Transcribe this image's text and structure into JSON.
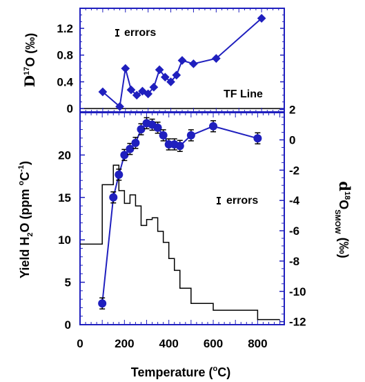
{
  "colors": {
    "series": "#1f1fbe",
    "frame": "#1f1fbe",
    "step": "#000000",
    "text": "#000000"
  },
  "chart_data": [
    {
      "id": "top",
      "type": "line",
      "ylabel_parts": [
        "D",
        "17",
        "O (‰)"
      ],
      "xlim": [
        0,
        900
      ],
      "ylim": [
        -0.05,
        1.5
      ],
      "yticks": [
        0,
        0.4,
        0.8,
        1.2
      ],
      "ytick_labels": [
        "0",
        "0.4",
        "0.8",
        "1.2"
      ],
      "legend_text": "errors",
      "reference_line": {
        "label": "TF Line",
        "y": 0
      },
      "series": [
        {
          "marker": "diamond",
          "x": [
            100,
            175,
            200,
            225,
            250,
            275,
            300,
            325,
            350,
            375,
            400,
            425,
            450,
            500,
            600,
            800
          ],
          "y": [
            0.25,
            0.03,
            0.6,
            0.28,
            0.2,
            0.26,
            0.22,
            0.32,
            0.58,
            0.47,
            0.4,
            0.5,
            0.72,
            0.67,
            0.75,
            1.35
          ]
        }
      ]
    },
    {
      "id": "bottom",
      "type": "line",
      "xlabel_parts": [
        "Temperature (",
        "o",
        "C)"
      ],
      "ylabel_parts": [
        "Yield H",
        "2",
        "O (ppm ",
        "o",
        "C",
        "-1",
        ")"
      ],
      "y2label_parts": [
        "d",
        "18",
        "O",
        "SMOW",
        " (‰)"
      ],
      "xlim": [
        0,
        920
      ],
      "ylim": [
        0,
        25
      ],
      "xticks": [
        0,
        200,
        400,
        600,
        800
      ],
      "xtick_labels": [
        "0",
        "200",
        "400",
        "600",
        "800"
      ],
      "yticks": [
        0,
        5,
        10,
        15,
        20
      ],
      "ytick_labels": [
        "0",
        "5",
        "10",
        "15",
        "20"
      ],
      "y2lim": [
        -12.2,
        1.8
      ],
      "y2ticks": [
        -12,
        -10,
        -8,
        -6,
        -4,
        -2,
        0,
        2
      ],
      "y2tick_labels": [
        "-12",
        "-10",
        "-8",
        "-6",
        "-4",
        "-2",
        "0",
        "2"
      ],
      "legend_text": "errors",
      "step_series": {
        "axis": "left",
        "x": [
          0,
          100,
          150,
          175,
          200,
          225,
          250,
          275,
          300,
          325,
          350,
          375,
          400,
          425,
          450,
          500,
          600,
          800,
          900
        ],
        "y": [
          9.5,
          16.5,
          18.8,
          15.8,
          14.3,
          15.3,
          14,
          11.7,
          12.4,
          12.6,
          11,
          9.7,
          7.8,
          6.4,
          4.3,
          2.5,
          1.7,
          0.6,
          0.6
        ]
      },
      "series": [
        {
          "marker": "circle",
          "axis": "right",
          "x": [
            100,
            150,
            175,
            200,
            225,
            250,
            275,
            300,
            325,
            350,
            375,
            400,
            425,
            450,
            500,
            600,
            800
          ],
          "y": [
            -10.8,
            -3.8,
            -2.3,
            -1.0,
            -0.6,
            -0.2,
            0.7,
            1.1,
            1.0,
            0.8,
            0.3,
            -0.3,
            -0.3,
            -0.4,
            0.3,
            0.9,
            0.1
          ]
        }
      ]
    }
  ]
}
